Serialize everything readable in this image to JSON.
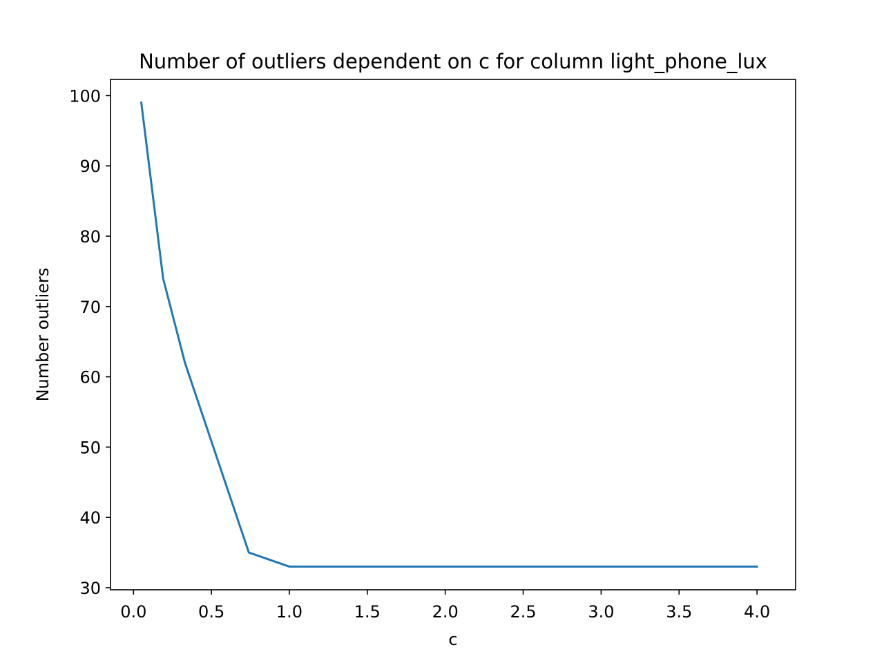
{
  "chart_data": {
    "type": "line",
    "title": "Number of outliers dependent on c for column light_phone_lux",
    "xlabel": "c",
    "ylabel": "Number outliers",
    "xlim": [
      -0.1475,
      4.2475
    ],
    "ylim": [
      29.7,
      102.3
    ],
    "x_ticks": [
      0.0,
      0.5,
      1.0,
      1.5,
      2.0,
      2.5,
      3.0,
      3.5,
      4.0
    ],
    "x_tick_labels": [
      "0.0",
      "0.5",
      "1.0",
      "1.5",
      "2.0",
      "2.5",
      "3.0",
      "3.5",
      "4.0"
    ],
    "y_ticks": [
      30,
      40,
      50,
      60,
      70,
      80,
      90,
      100
    ],
    "y_tick_labels": [
      "30",
      "40",
      "50",
      "60",
      "70",
      "80",
      "90",
      "100"
    ],
    "grid": false,
    "series": [
      {
        "color": "#1f77b4",
        "x": [
          0.05,
          0.19,
          0.33,
          0.74,
          1.0,
          4.0
        ],
        "y": [
          99,
          74,
          62,
          35,
          33,
          33
        ]
      }
    ]
  }
}
